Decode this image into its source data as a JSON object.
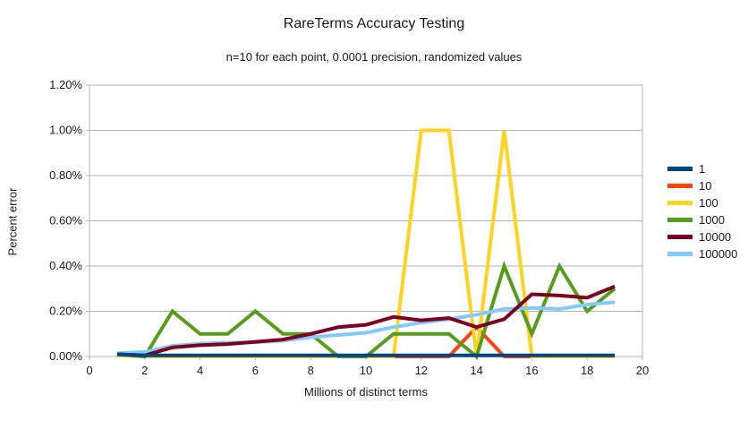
{
  "header": {
    "title": "RareTerms Accuracy Testing",
    "subtitle": "n=10 for each point, 0.0001 precision, randomized values"
  },
  "chart_data": {
    "type": "line",
    "title": "RareTerms Accuracy Testing",
    "subtitle": "n=10 for each point, 0.0001 precision, randomized values",
    "xlabel": "Millions of distinct terms",
    "ylabel": "Percent error",
    "xlim": [
      0,
      20
    ],
    "ylim": [
      0,
      1.2
    ],
    "x_ticks": [
      0,
      2,
      4,
      6,
      8,
      10,
      12,
      14,
      16,
      18,
      20
    ],
    "y_ticks": [
      0,
      0.2,
      0.4,
      0.6,
      0.8,
      1.0,
      1.2
    ],
    "y_tick_labels": [
      "0.00%",
      "0.20%",
      "0.40%",
      "0.60%",
      "0.80%",
      "1.00%",
      "1.20%"
    ],
    "grid": "horizontal",
    "legend_position": "right",
    "grid_color": "#b3b3b3",
    "x": [
      1,
      2,
      3,
      4,
      5,
      6,
      7,
      8,
      9,
      10,
      11,
      12,
      13,
      14,
      15,
      16,
      17,
      18,
      19
    ],
    "series": [
      {
        "name": "1",
        "color": "#004586",
        "values": [
          0.01,
          0.005,
          0.005,
          0.005,
          0.005,
          0.005,
          0.005,
          0.005,
          0.005,
          0.005,
          0.005,
          0.005,
          0.005,
          0.005,
          0.005,
          0.005,
          0.005,
          0.005,
          0.005
        ]
      },
      {
        "name": "10",
        "color": "#ff420e",
        "values": [
          0.01,
          0,
          0,
          0,
          0,
          0,
          0,
          0,
          0,
          0,
          0,
          0,
          0,
          0.13,
          0,
          0,
          0,
          0,
          0
        ]
      },
      {
        "name": "100",
        "color": "#ffd320",
        "values": [
          0.005,
          0,
          0,
          0,
          0,
          0,
          0,
          0,
          0,
          0,
          0,
          1.0,
          1.0,
          0,
          1.0,
          0,
          0,
          0,
          0
        ]
      },
      {
        "name": "1000",
        "color": "#579d1c",
        "values": [
          0.01,
          0,
          0.2,
          0.1,
          0.1,
          0.2,
          0.1,
          0.1,
          0,
          0,
          0.1,
          0.1,
          0.1,
          0,
          0.4,
          0.1,
          0.4,
          0.2,
          0.3
        ]
      },
      {
        "name": "10000",
        "color": "#7e0021",
        "values": [
          0.01,
          0.005,
          0.04,
          0.05,
          0.055,
          0.065,
          0.075,
          0.1,
          0.13,
          0.14,
          0.175,
          0.16,
          0.17,
          0.13,
          0.165,
          0.275,
          0.27,
          0.26,
          0.31
        ]
      },
      {
        "name": "100000",
        "color": "#83caff",
        "values": [
          0.015,
          0.02,
          0.047,
          0.057,
          0.061,
          0.063,
          0.07,
          0.085,
          0.095,
          0.105,
          0.13,
          0.15,
          0.165,
          0.185,
          0.21,
          0.215,
          0.21,
          0.23,
          0.24
        ]
      }
    ]
  }
}
